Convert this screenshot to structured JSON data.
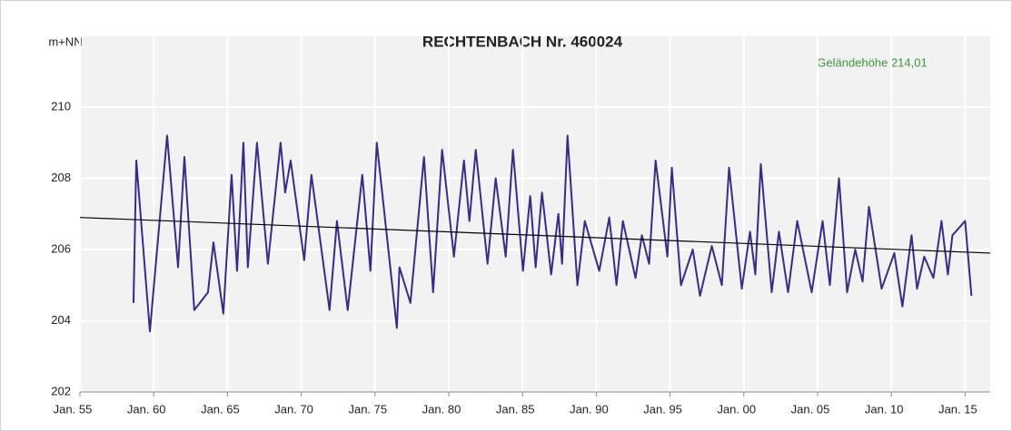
{
  "chart_data": {
    "type": "line",
    "title": "RECHTENBACH  Nr. 460024",
    "y_label": "m+NN",
    "annotation": "Geländehöhe 214,01",
    "grid": true,
    "xlim": [
      1955,
      2016.7
    ],
    "ylim": [
      202,
      212
    ],
    "xticks": [
      {
        "value": 1955,
        "label": "Jan. 55"
      },
      {
        "value": 1960,
        "label": "Jan. 60"
      },
      {
        "value": 1965,
        "label": "Jan. 65"
      },
      {
        "value": 1970,
        "label": "Jan. 70"
      },
      {
        "value": 1975,
        "label": "Jan. 75"
      },
      {
        "value": 1980,
        "label": "Jan. 80"
      },
      {
        "value": 1985,
        "label": "Jan. 85"
      },
      {
        "value": 1990,
        "label": "Jan. 90"
      },
      {
        "value": 1995,
        "label": "Jan. 95"
      },
      {
        "value": 2000,
        "label": "Jan. 00"
      },
      {
        "value": 2005,
        "label": "Jan. 05"
      },
      {
        "value": 2010,
        "label": "Jan. 10"
      },
      {
        "value": 2015,
        "label": "Jan. 15"
      }
    ],
    "yticks": [
      202,
      204,
      206,
      208,
      210
    ],
    "x": [
      1958.63,
      1958.82,
      1959.74,
      1960.91,
      1961.65,
      1962.08,
      1962.75,
      1963.68,
      1964.05,
      1964.72,
      1965.28,
      1965.65,
      1966.08,
      1966.38,
      1967.0,
      1967.74,
      1968.6,
      1968.91,
      1969.28,
      1970.2,
      1970.69,
      1971.92,
      1972.42,
      1973.15,
      1974.14,
      1974.69,
      1975.12,
      1976.48,
      1976.66,
      1977.4,
      1978.32,
      1978.94,
      1979.55,
      1980.35,
      1981.03,
      1981.4,
      1981.83,
      1982.63,
      1983.18,
      1983.86,
      1984.35,
      1985.03,
      1985.52,
      1985.89,
      1986.32,
      1986.94,
      1987.43,
      1987.68,
      1988.05,
      1988.72,
      1989.22,
      1990.2,
      1990.88,
      1991.37,
      1991.8,
      1992.66,
      1993.09,
      1993.58,
      1994.02,
      1994.82,
      1995.12,
      1995.74,
      1996.54,
      1997.03,
      1997.83,
      1998.51,
      1999.0,
      1999.86,
      2000.42,
      2000.78,
      2001.15,
      2001.89,
      2002.38,
      2003.0,
      2003.62,
      2004.6,
      2005.34,
      2005.83,
      2006.45,
      2007.0,
      2007.55,
      2008.05,
      2008.48,
      2009.34,
      2010.2,
      2010.75,
      2011.37,
      2011.74,
      2012.23,
      2012.85,
      2013.4,
      2013.83,
      2014.14,
      2015.0,
      2015.43
    ],
    "series": [
      {
        "color": "#3b2a8c",
        "values": [
          204.5,
          208.5,
          203.7,
          209.2,
          205.5,
          208.6,
          204.3,
          204.8,
          206.2,
          204.2,
          208.1,
          205.4,
          209.0,
          205.5,
          209.0,
          205.6,
          209.0,
          207.6,
          208.5,
          205.7,
          208.1,
          204.3,
          206.8,
          204.3,
          208.1,
          205.4,
          209.0,
          203.8,
          205.5,
          204.5,
          208.6,
          204.8,
          208.8,
          205.8,
          208.5,
          206.8,
          208.8,
          205.6,
          208.0,
          205.8,
          208.8,
          205.4,
          207.5,
          205.5,
          207.6,
          205.3,
          207.0,
          205.6,
          209.2,
          205.0,
          206.8,
          205.4,
          206.9,
          205.0,
          206.8,
          205.2,
          206.4,
          205.6,
          208.5,
          205.8,
          208.3,
          205.0,
          206.0,
          204.7,
          206.1,
          205.0,
          208.3,
          204.9,
          206.5,
          205.3,
          208.4,
          204.8,
          206.5,
          204.8,
          206.8,
          204.8,
          206.8,
          205.0,
          208.0,
          204.8,
          206.0,
          205.1,
          207.2,
          204.9,
          205.9,
          204.4,
          206.4,
          204.9,
          205.8,
          205.2,
          206.8,
          205.3,
          206.4,
          206.8,
          204.7
        ]
      }
    ],
    "trend": {
      "color": "#000000",
      "x": [
        1955,
        2016.7
      ],
      "values": [
        206.9,
        205.9
      ]
    }
  }
}
